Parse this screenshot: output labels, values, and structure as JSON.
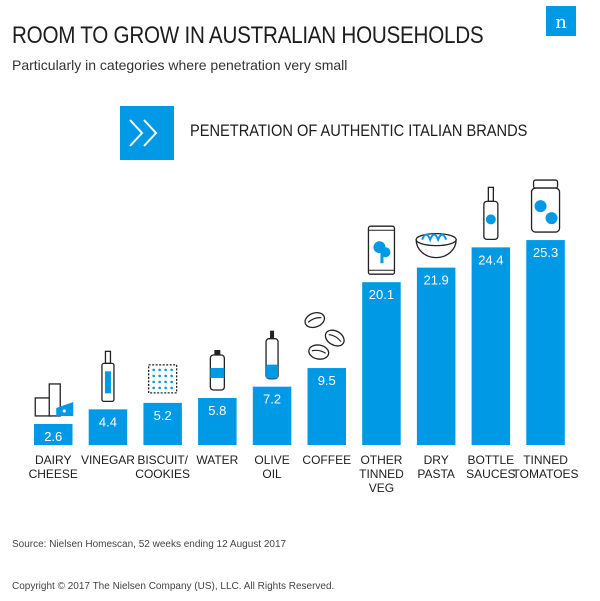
{
  "header": {
    "title": "ROOM TO GROW IN AUSTRALIAN HOUSEHOLDS",
    "subtitle": "Particularly in categories where penetration very small",
    "logo_letter": "n"
  },
  "chart_data": {
    "type": "bar",
    "title": "PENETRATION OF AUTHENTIC ITALIAN BRANDS",
    "categories": [
      [
        "DAIRY",
        "CHEESE"
      ],
      [
        "VINEGAR"
      ],
      [
        "BISCUIT/",
        "COOKIES"
      ],
      [
        "WATER"
      ],
      [
        "OLIVE",
        "OIL"
      ],
      [
        "COFFEE"
      ],
      [
        "OTHER",
        "TINNED",
        "VEG"
      ],
      [
        "DRY",
        "PASTA"
      ],
      [
        "BOTTLE",
        "SAUCES"
      ],
      [
        "TINNED",
        "TOMATOES"
      ]
    ],
    "values": [
      2.6,
      4.4,
      5.2,
      5.8,
      7.2,
      9.5,
      20.1,
      21.9,
      24.4,
      25.3
    ],
    "value_labels": [
      "2.6",
      "4.4",
      "5.2",
      "5.8",
      "7.2",
      "9.5",
      "20.1",
      "21.9",
      "24.4",
      "25.3"
    ],
    "icons": [
      "cheese-icon",
      "vinegar-bottle-icon",
      "biscuit-icon",
      "water-bottle-icon",
      "olive-oil-bottle-icon",
      "coffee-beans-icon",
      "veg-can-icon",
      "pasta-bowl-icon",
      "sauce-bottle-icon",
      "tomato-jar-icon"
    ],
    "grid": false,
    "legend": "none",
    "bar_color": "#0099e5"
  },
  "footer": {
    "source": "Source: Nielsen Homescan, 52 weeks ending 12 August 2017",
    "copyright": "Copyright © 2017 The Nielsen Company (US), LLC. All Rights Reserved."
  }
}
